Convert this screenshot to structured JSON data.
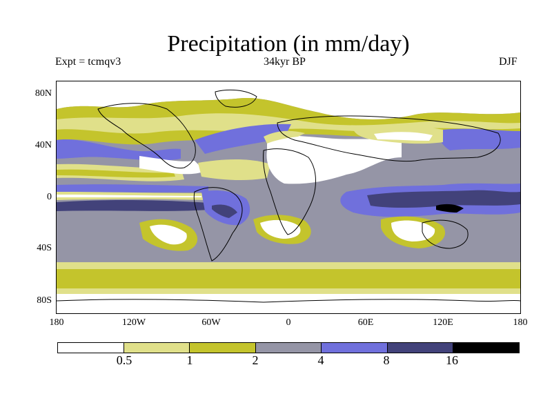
{
  "title": "Precipitation (in mm/day)",
  "subtitle_left": "Expt = tcmqv3",
  "subtitle_center": "34kyr BP",
  "subtitle_right": "DJF",
  "map": {
    "projection": "cylindrical equidistant",
    "lon_range": [
      -180,
      180
    ],
    "lat_range": [
      -90,
      90
    ],
    "lat_tick_labels": [
      "80N",
      "40N",
      "0",
      "40S",
      "80S"
    ],
    "lon_tick_labels": [
      "180",
      "120W",
      "60W",
      "0",
      "60E",
      "120E",
      "180"
    ]
  },
  "colorbar": {
    "tick_labels": [
      "0.5",
      "1",
      "2",
      "4",
      "8",
      "16"
    ],
    "colors": [
      "#ffffff",
      "#e0e08a",
      "#c4c42c",
      "#9595a6",
      "#7070dc",
      "#42427a",
      "#000000"
    ]
  }
}
